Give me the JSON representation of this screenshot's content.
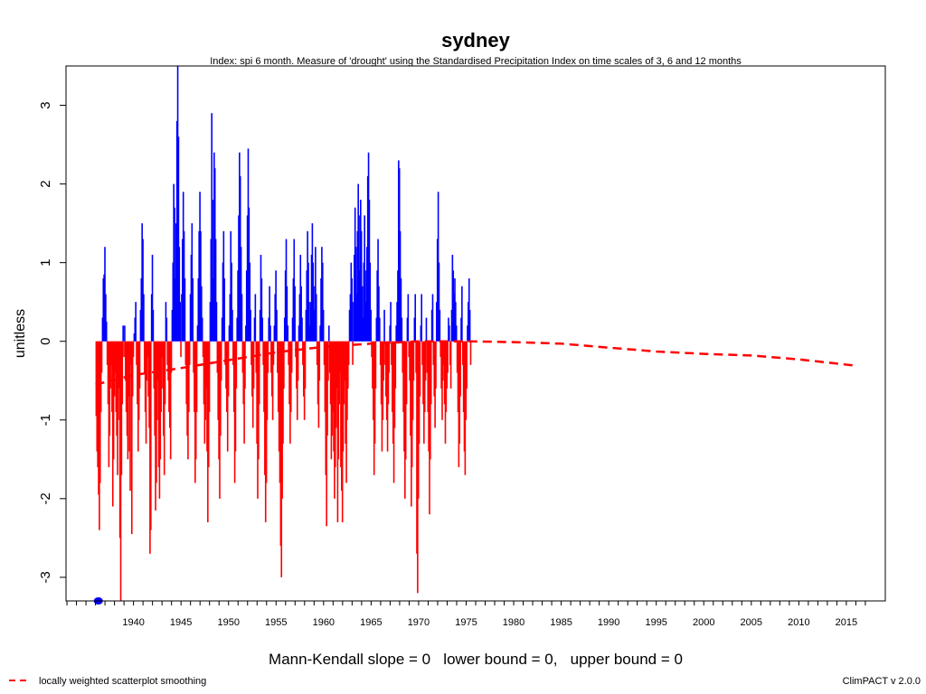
{
  "chart_data": {
    "type": "bar",
    "title": "sydney",
    "subtitle": "Index: spi 6 month. Measure of 'drought' using the Standardised Precipitation Index on time scales of 3, 6 and 12 months",
    "xlabel": "",
    "ylabel": "unitless",
    "xlim": [
      1932.9,
      2019.1
    ],
    "ylim": [
      -3.3,
      3.5
    ],
    "x_ticks": [
      "1940",
      "1945",
      "1950",
      "1955",
      "1960",
      "1965",
      "1970",
      "1975",
      "1980",
      "1985",
      "1990",
      "1995",
      "2000",
      "2005",
      "2010",
      "2015"
    ],
    "y_ticks": [
      "-3",
      "-2",
      "-1",
      "0",
      "1",
      "2",
      "3"
    ],
    "colors": {
      "positive": "#0000ff",
      "negative": "#ff0000",
      "smoothing": "#ff0000"
    },
    "x_start": 1936.0,
    "x_step": 0.0833,
    "values": [
      -0.95,
      -1.4,
      -1.6,
      -1.95,
      -2.4,
      -1.8,
      -0.9,
      -0.4,
      0.3,
      0.8,
      0.85,
      1.2,
      0.6,
      0.25,
      -0.3,
      -0.8,
      -1.6,
      -1.2,
      -0.6,
      -0.3,
      -0.9,
      -2.1,
      -1.5,
      -0.7,
      -0.4,
      -0.9,
      -1.2,
      -1.7,
      -1.0,
      -0.6,
      -2.5,
      -3.35,
      -1.7,
      -0.8,
      0.2,
      -0.2,
      0.2,
      -0.5,
      -0.9,
      -1.2,
      -1.5,
      -0.7,
      -1.4,
      -1.9,
      -0.3,
      -2.45,
      -0.7,
      -0.2,
      0.1,
      0.3,
      0.5,
      -0.3,
      -0.8,
      -1.4,
      -1.0,
      -0.6,
      0.4,
      0.8,
      1.5,
      1.3,
      0.6,
      -0.4,
      -0.9,
      -1.3,
      -0.5,
      -0.2,
      -0.7,
      -1.1,
      -2.7,
      -2.4,
      0.6,
      1.1,
      0.4,
      -0.6,
      -1.2,
      -2.15,
      -1.8,
      -1.0,
      -0.5,
      -1.6,
      -2.0,
      -1.5,
      -0.9,
      -0.2,
      -0.6,
      -1.2,
      -1.7,
      -0.8,
      0.5,
      0.3,
      -0.3,
      -0.5,
      -0.9,
      -1.1,
      -1.5,
      -0.4,
      0.4,
      1.0,
      2.0,
      1.7,
      0.8,
      1.5,
      2.8,
      3.5,
      2.6,
      1.2,
      0.5,
      -0.2,
      0.6,
      1.3,
      1.9,
      1.4,
      0.8,
      -0.3,
      -0.8,
      -1.2,
      -1.5,
      -0.9,
      -0.3,
      0.6,
      1.1,
      1.5,
      0.8,
      -0.4,
      -0.9,
      -1.8,
      -1.5,
      -0.9,
      0.2,
      0.8,
      1.4,
      1.9,
      1.4,
      0.7,
      0.3,
      -0.2,
      -0.8,
      -1.3,
      -1.0,
      -0.6,
      -1.4,
      -2.3,
      -1.6,
      -0.9,
      0.5,
      1.3,
      2.9,
      1.8,
      0.8,
      2.4,
      2.2,
      1.3,
      0.5,
      -0.4,
      -1.0,
      -1.5,
      -2.0,
      -1.2,
      -0.5,
      0.3,
      1.0,
      1.4,
      0.8,
      -0.3,
      -0.6,
      -0.9,
      -1.4,
      -0.7,
      0.2,
      0.6,
      1.4,
      1.0,
      0.4,
      -0.3,
      -0.9,
      -1.8,
      -1.4,
      -0.6,
      0.3,
      0.9,
      1.6,
      2.4,
      2.1,
      1.2,
      0.6,
      -0.4,
      -0.8,
      -1.3,
      -0.6,
      0.2,
      0.9,
      1.6,
      2.45,
      1.7,
      1.0,
      0.4,
      -0.3,
      -0.7,
      -1.1,
      -0.6,
      0.3,
      0.6,
      -0.4,
      -1.3,
      -2.0,
      -1.5,
      -0.8,
      0.4,
      1.1,
      0.8,
      0.3,
      -0.3,
      -0.9,
      -1.7,
      -2.3,
      -1.8,
      -1.0,
      -0.4,
      0.3,
      0.7,
      0.2,
      -0.4,
      -0.7,
      -1.0,
      -0.3,
      0.2,
      0.6,
      0.9,
      0.4,
      -0.4,
      -0.9,
      -1.4,
      -1.8,
      -2.6,
      -3.0,
      -2.0,
      -1.3,
      -0.6,
      0.3,
      0.9,
      1.3,
      0.7,
      0.2,
      -0.3,
      -0.8,
      -1.3,
      -0.9,
      -0.4,
      0.3,
      0.8,
      1.3,
      0.7,
      -0.2,
      -0.6,
      -1.0,
      -0.5,
      0.2,
      0.6,
      1.1,
      0.7,
      0.3,
      -0.3,
      -0.7,
      -1.0,
      -0.6,
      0.4,
      0.9,
      1.4,
      1.0,
      0.5,
      0.2,
      0.5,
      1.1,
      1.5,
      1.0,
      0.4,
      0.7,
      1.2,
      0.6,
      -0.3,
      -0.8,
      -1.1,
      -0.5,
      0.2,
      0.8,
      1.2,
      1.0,
      0.4,
      -0.3,
      -0.9,
      -1.7,
      -2.35,
      -1.2,
      -0.5,
      0.2,
      -0.4,
      -0.8,
      -1.5,
      -1.2,
      -0.9,
      -1.4,
      -2.0,
      -1.6,
      -1.1,
      -0.6,
      -2.3,
      -1.5,
      -0.8,
      -0.4,
      -1.6,
      -1.9,
      -2.3,
      -1.4,
      -0.8,
      -0.5,
      -1.3,
      -1.8,
      -1.0,
      -0.6,
      -0.3,
      0.4,
      0.6,
      1.0,
      0.8,
      -0.3,
      0.5,
      1.1,
      1.7,
      1.2,
      0.6,
      1.4,
      2.0,
      1.6,
      0.9,
      1.8,
      1.4,
      0.7,
      0.3,
      1.0,
      1.6,
      0.9,
      0.5,
      1.2,
      2.1,
      2.4,
      1.8,
      1.0,
      0.4,
      -0.2,
      -0.6,
      -1.0,
      -1.7,
      -1.3,
      -0.6,
      0.3,
      0.9,
      1.3,
      0.7,
      0.3,
      -0.3,
      -0.8,
      -1.4,
      -1.0,
      -0.5,
      0.4,
      -0.3,
      -0.7,
      -1.0,
      -1.4,
      -0.8,
      -0.4,
      0.2,
      0.5,
      -0.3,
      -0.9,
      -1.3,
      -1.8,
      -1.1,
      -0.6,
      0.2,
      0.5,
      0.9,
      2.3,
      2.2,
      1.4,
      0.8,
      0.3,
      -0.4,
      -0.9,
      -1.4,
      -2.0,
      -1.5,
      -0.8,
      0.3,
      0.6,
      -0.2,
      -0.5,
      -1.2,
      -2.1,
      -1.6,
      -1.0,
      -0.5,
      0.3,
      0.6,
      -0.4,
      -2.7,
      -3.2,
      -2.0,
      -1.3,
      -0.7,
      0.2,
      0.6,
      -0.3,
      -0.8,
      -1.3,
      -0.9,
      -0.5,
      0.3,
      -0.4,
      -0.9,
      -1.4,
      -2.2,
      -1.5,
      -0.8,
      0.4,
      0.6,
      -0.3,
      -0.7,
      -1.1,
      -0.6,
      0.5,
      1.3,
      1.9,
      1.0,
      0.4,
      -0.2,
      -0.6,
      -1.0,
      -0.5,
      -0.3,
      -0.8,
      -1.3,
      -0.9,
      -0.6,
      -0.4,
      0.3,
      0.2,
      -0.3,
      -0.6,
      0.4,
      1.1,
      0.9,
      0.6,
      0.8,
      0.5,
      0.2,
      -0.4,
      -0.9,
      -1.6,
      -1.3,
      -0.7,
      0.3,
      0.7,
      -0.3,
      -0.9,
      -1.4,
      -1.7,
      -1.0,
      -0.6,
      0.2,
      0.5,
      0.8,
      0.4,
      -0.3
    ],
    "smoothing": {
      "name": "locally weighted scatterplot smoothing",
      "x": [
        1936,
        1940,
        1945,
        1950,
        1955,
        1960,
        1965,
        1970,
        1975,
        1980,
        1985,
        1990,
        1995,
        2000,
        2005,
        2010,
        2016
      ],
      "y": [
        -0.55,
        -0.43,
        -0.34,
        -0.24,
        -0.14,
        -0.07,
        -0.03,
        0.0,
        0.0,
        -0.01,
        -0.03,
        -0.08,
        -0.13,
        -0.16,
        -0.18,
        -0.23,
        -0.31
      ]
    },
    "mk_marker": {
      "x": 1936.3,
      "y": -3.3
    }
  },
  "stats_text": "Mann-Kendall slope = 0   lower bound = 0,   upper bound = 0",
  "legend": {
    "label": "locally weighted scatterplot smoothing"
  },
  "credit": "ClimPACT v 2.0.0"
}
